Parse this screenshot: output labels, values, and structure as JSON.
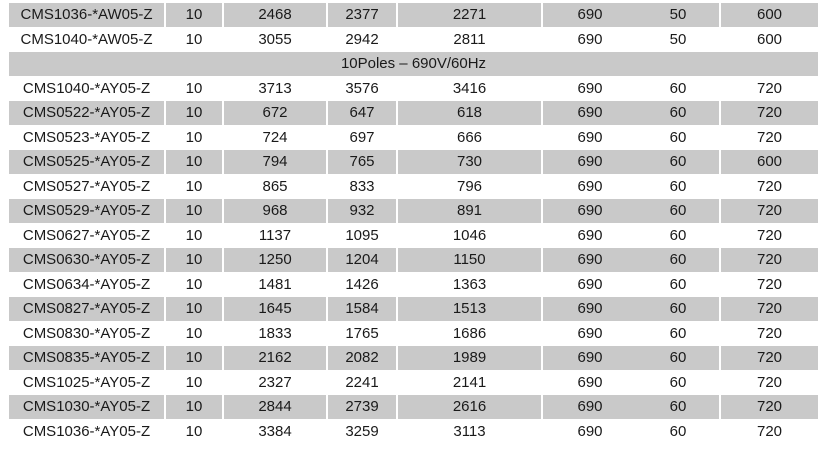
{
  "rows_top": [
    [
      "CMS1036-*AW05-Z",
      "10",
      "2468",
      "2377",
      "2271",
      "690",
      "50",
      "600"
    ],
    [
      "CMS1040-*AW05-Z",
      "10",
      "3055",
      "2942",
      "2811",
      "690",
      "50",
      "600"
    ]
  ],
  "section_title": "10Poles – 690V/60Hz",
  "rows_bottom": [
    [
      "CMS1040-*AY05-Z",
      "10",
      "3713",
      "3576",
      "3416",
      "690",
      "60",
      "720"
    ],
    [
      "CMS0522-*AY05-Z",
      "10",
      "672",
      "647",
      "618",
      "690",
      "60",
      "720"
    ],
    [
      "CMS0523-*AY05-Z",
      "10",
      "724",
      "697",
      "666",
      "690",
      "60",
      "720"
    ],
    [
      "CMS0525-*AY05-Z",
      "10",
      "794",
      "765",
      "730",
      "690",
      "60",
      "600"
    ],
    [
      "CMS0527-*AY05-Z",
      "10",
      "865",
      "833",
      "796",
      "690",
      "60",
      "720"
    ],
    [
      "CMS0529-*AY05-Z",
      "10",
      "968",
      "932",
      "891",
      "690",
      "60",
      "720"
    ],
    [
      "CMS0627-*AY05-Z",
      "10",
      "1137",
      "1095",
      "1046",
      "690",
      "60",
      "720"
    ],
    [
      "CMS0630-*AY05-Z",
      "10",
      "1250",
      "1204",
      "1150",
      "690",
      "60",
      "720"
    ],
    [
      "CMS0634-*AY05-Z",
      "10",
      "1481",
      "1426",
      "1363",
      "690",
      "60",
      "720"
    ],
    [
      "CMS0827-*AY05-Z",
      "10",
      "1645",
      "1584",
      "1513",
      "690",
      "60",
      "720"
    ],
    [
      "CMS0830-*AY05-Z",
      "10",
      "1833",
      "1765",
      "1686",
      "690",
      "60",
      "720"
    ],
    [
      "CMS0835-*AY05-Z",
      "10",
      "2162",
      "2082",
      "1989",
      "690",
      "60",
      "720"
    ],
    [
      "CMS1025-*AY05-Z",
      "10",
      "2327",
      "2241",
      "2141",
      "690",
      "60",
      "720"
    ],
    [
      "CMS1030-*AY05-Z",
      "10",
      "2844",
      "2739",
      "2616",
      "690",
      "60",
      "720"
    ],
    [
      "CMS1036-*AY05-Z",
      "10",
      "3384",
      "3259",
      "3113",
      "690",
      "60",
      "720"
    ]
  ],
  "colors": {
    "stripe": "#c9c9c9",
    "text": "#1a1a1a"
  }
}
